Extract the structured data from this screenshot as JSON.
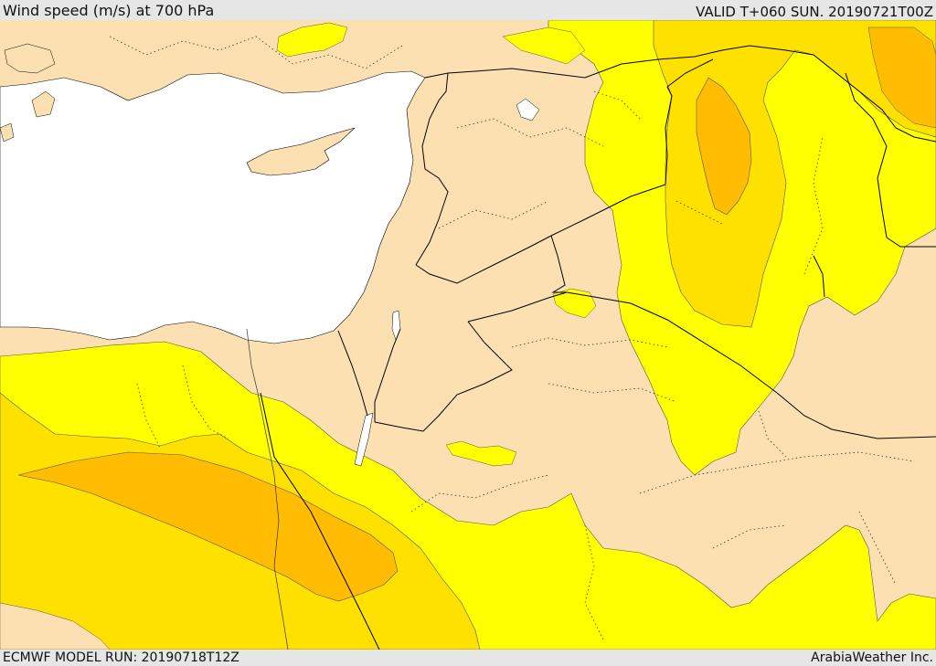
{
  "header": {
    "title": "Wind speed (m/s) at 700 hPa",
    "valid": "VALID T+060 SUN. 20190721T00Z"
  },
  "footer": {
    "model_run": "ECMWF MODEL RUN: 20190718T12Z",
    "credit": "ArabiaWeather Inc."
  },
  "map": {
    "colors": {
      "sea": "#ffffff",
      "calm": "#fde0b2",
      "light": "#ffff00",
      "moderate": "#ffe100",
      "strong": "#ffbc00",
      "border": "#000000"
    }
  }
}
